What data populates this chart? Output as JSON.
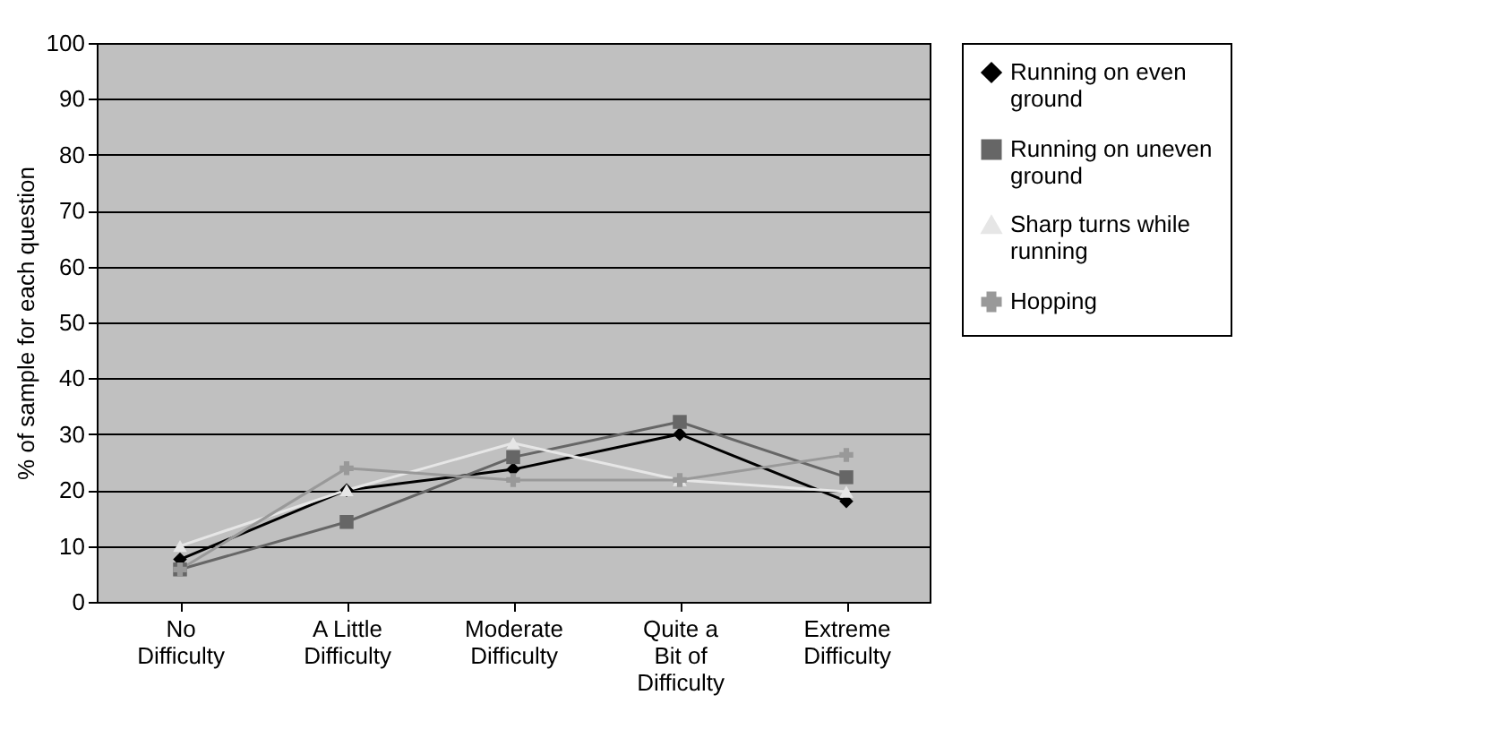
{
  "chart_data": {
    "type": "line",
    "ylabel": "% of sample for each question",
    "categories": [
      "No Difficulty",
      "A Little Difficulty",
      "Moderate Difficulty",
      "Quite a Bit of Difficulty",
      "Extreme Difficulty"
    ],
    "series": [
      {
        "name": "Running on even ground",
        "color": "#000000",
        "marker": "diamond",
        "values": [
          7.6,
          20,
          23.7,
          30,
          18
        ]
      },
      {
        "name": "Running on uneven ground",
        "color": "#666666",
        "marker": "square",
        "values": [
          5.8,
          14.3,
          25.9,
          32.2,
          22.3
        ]
      },
      {
        "name": "Sharp turns while running",
        "color": "#e6e6e6",
        "marker": "triangle",
        "values": [
          10,
          20,
          28.4,
          21.8,
          19.7
        ]
      },
      {
        "name": "Hopping",
        "color": "#999999",
        "marker": "cross",
        "values": [
          5.8,
          23.9,
          21.8,
          21.8,
          26.3
        ]
      }
    ],
    "ylim": [
      0,
      100
    ],
    "yticks": [
      0,
      10,
      20,
      30,
      40,
      50,
      60,
      70,
      80,
      90,
      100
    ],
    "grid": "y",
    "legend": "right"
  }
}
